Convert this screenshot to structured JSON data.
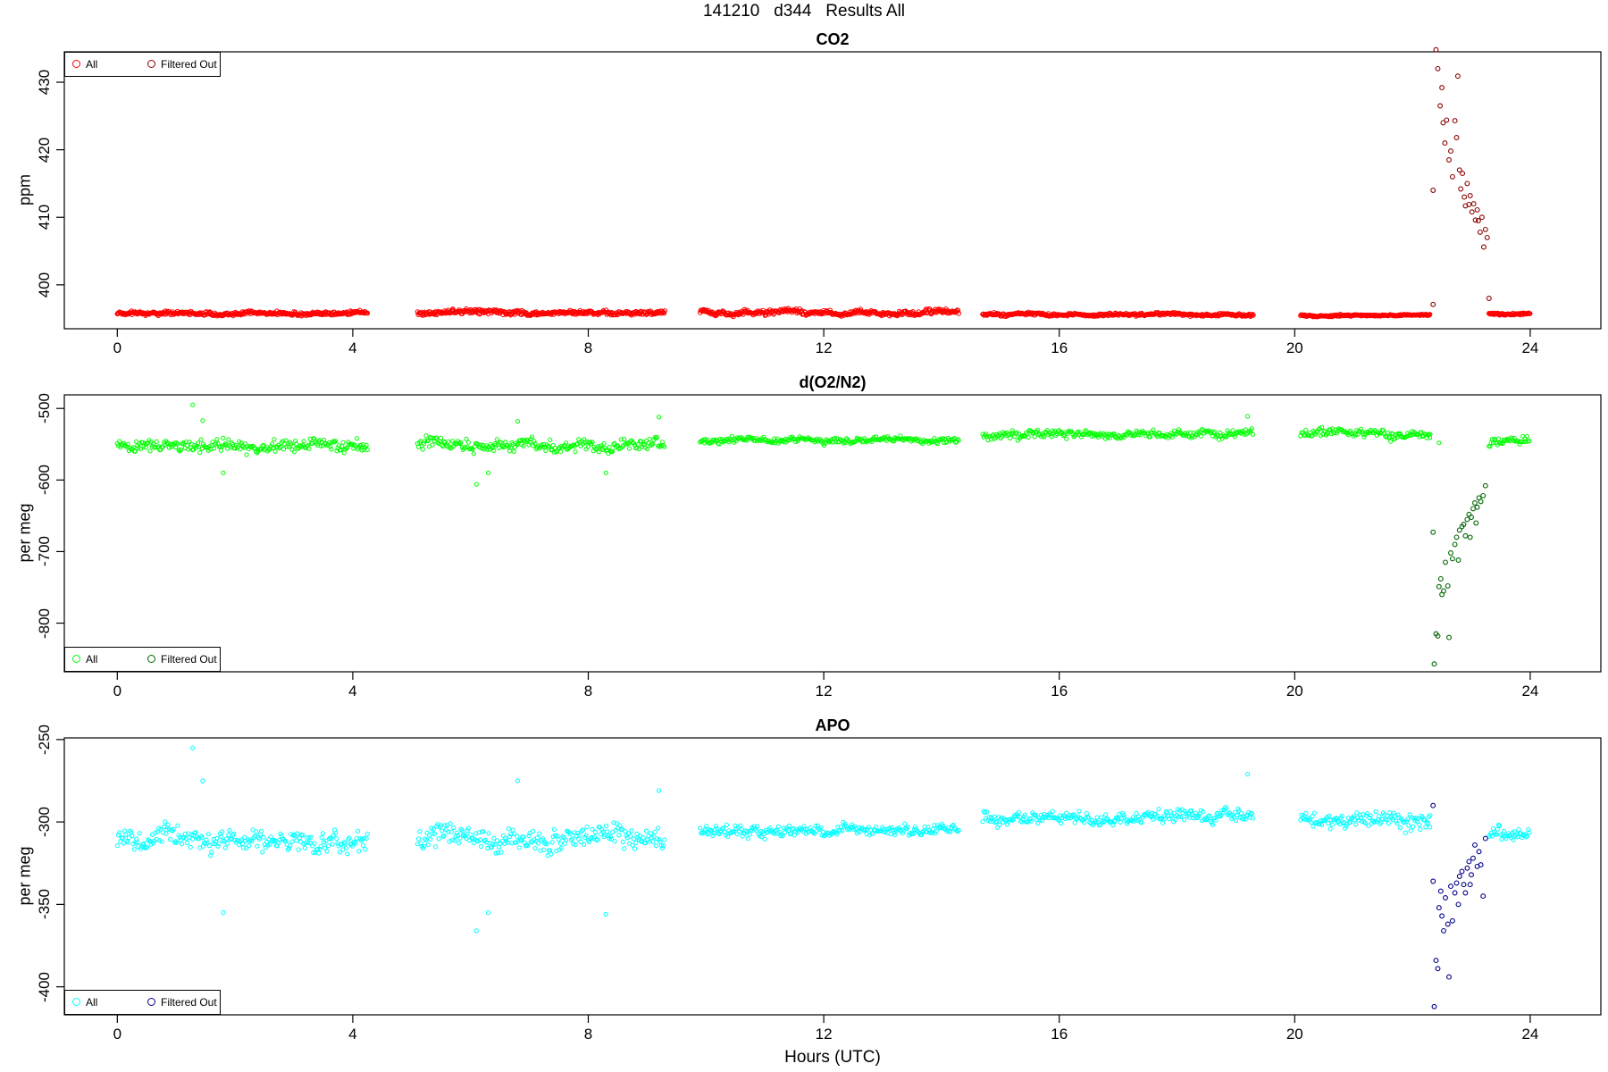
{
  "figure": {
    "title": "141210   d344   Results All",
    "xlabel": "Hours (UTC)"
  },
  "chart_data": [
    {
      "type": "scatter",
      "title": "CO2",
      "xlabel": "Hours (UTC)",
      "ylabel": "ppm",
      "xlim": [
        -0.9,
        25.2
      ],
      "ylim": [
        393.5,
        434.5
      ],
      "xticks": [
        "0",
        "4",
        "8",
        "12",
        "16",
        "20",
        "24"
      ],
      "yticks": [
        "400",
        "410",
        "420",
        "430"
      ],
      "legend": {
        "position": "top-left",
        "entries": [
          "All",
          "Filtered Out"
        ]
      },
      "colors": {
        "all": "#ff0000",
        "filtered": "#8b0000"
      },
      "series": [
        {
          "name": "All",
          "segments": [
            {
              "start": 0.0,
              "end": 4.25,
              "base": 395.8,
              "noise": 0.35
            },
            {
              "start": 5.1,
              "end": 9.3,
              "base": 395.9,
              "noise": 0.4
            },
            {
              "start": 9.9,
              "end": 14.3,
              "base": 395.9,
              "noise": 0.45
            },
            {
              "start": 14.7,
              "end": 19.3,
              "base": 395.6,
              "noise": 0.25
            },
            {
              "start": 20.1,
              "end": 22.3,
              "base": 395.5,
              "noise": 0.15
            },
            {
              "start": 23.3,
              "end": 24.0,
              "base": 395.7,
              "noise": 0.2
            }
          ]
        },
        {
          "name": "Filtered Out",
          "points": [
            [
              22.35,
              414.0
            ],
            [
              22.4,
              434.8
            ],
            [
              22.43,
              432.0
            ],
            [
              22.47,
              426.5
            ],
            [
              22.5,
              429.2
            ],
            [
              22.52,
              424.0
            ],
            [
              22.55,
              421.0
            ],
            [
              22.58,
              424.4
            ],
            [
              22.62,
              418.5
            ],
            [
              22.65,
              419.8
            ],
            [
              22.68,
              416.0
            ],
            [
              22.72,
              424.3
            ],
            [
              22.75,
              421.8
            ],
            [
              22.77,
              430.9
            ],
            [
              22.8,
              417.0
            ],
            [
              22.82,
              414.2
            ],
            [
              22.85,
              416.5
            ],
            [
              22.88,
              413.0
            ],
            [
              22.9,
              411.7
            ],
            [
              22.93,
              415.0
            ],
            [
              22.96,
              411.9
            ],
            [
              22.98,
              413.2
            ],
            [
              23.01,
              410.8
            ],
            [
              23.04,
              412.0
            ],
            [
              23.07,
              409.6
            ],
            [
              23.1,
              411.1
            ],
            [
              23.12,
              409.5
            ],
            [
              23.15,
              407.8
            ],
            [
              23.18,
              410.0
            ],
            [
              23.21,
              405.6
            ],
            [
              23.24,
              408.2
            ],
            [
              23.27,
              407.0
            ],
            [
              22.35,
              397.1
            ],
            [
              23.3,
              398.0
            ]
          ]
        }
      ]
    },
    {
      "type": "scatter",
      "title": "d(O2/N2)",
      "xlabel": "Hours (UTC)",
      "ylabel": "per meg",
      "xlim": [
        -0.9,
        25.2
      ],
      "ylim": [
        -868,
        -481
      ],
      "xticks": [
        "0",
        "4",
        "8",
        "12",
        "16",
        "20",
        "24"
      ],
      "yticks": [
        "-500",
        "-600",
        "-700",
        "-800"
      ],
      "legend": {
        "position": "bottom-left",
        "entries": [
          "All",
          "Filtered Out"
        ]
      },
      "colors": {
        "all": "#00ff00",
        "filtered": "#006400"
      },
      "series": [
        {
          "name": "All",
          "segments": [
            {
              "start": 0.0,
              "end": 4.25,
              "base": -552,
              "noise": 11
            },
            {
              "start": 5.1,
              "end": 9.3,
              "base": -551,
              "noise": 10
            },
            {
              "start": 9.9,
              "end": 14.3,
              "base": -544,
              "noise": 5
            },
            {
              "start": 14.7,
              "end": 19.3,
              "base": -536,
              "noise": 7
            },
            {
              "start": 20.1,
              "end": 22.3,
              "base": -536,
              "noise": 7
            },
            {
              "start": 23.3,
              "end": 24.0,
              "base": -548,
              "noise": 7
            }
          ],
          "outliers": [
            [
              1.28,
              -495
            ],
            [
              1.45,
              -517
            ],
            [
              1.8,
              -590
            ],
            [
              6.1,
              -606
            ],
            [
              6.3,
              -590
            ],
            [
              6.8,
              -518
            ],
            [
              8.3,
              -590
            ],
            [
              9.2,
              -512
            ],
            [
              19.2,
              -511
            ],
            [
              22.3,
              -536
            ],
            [
              22.45,
              -548
            ]
          ]
        },
        {
          "name": "Filtered Out",
          "points": [
            [
              22.35,
              -673
            ],
            [
              22.37,
              -857
            ],
            [
              22.4,
              -815
            ],
            [
              22.43,
              -818
            ],
            [
              22.45,
              -749
            ],
            [
              22.48,
              -738
            ],
            [
              22.5,
              -760
            ],
            [
              22.53,
              -755
            ],
            [
              22.56,
              -715
            ],
            [
              22.6,
              -748
            ],
            [
              22.62,
              -820
            ],
            [
              22.65,
              -702
            ],
            [
              22.68,
              -710
            ],
            [
              22.72,
              -690
            ],
            [
              22.75,
              -680
            ],
            [
              22.78,
              -712
            ],
            [
              22.8,
              -670
            ],
            [
              22.84,
              -665
            ],
            [
              22.87,
              -662
            ],
            [
              22.9,
              -678
            ],
            [
              22.93,
              -655
            ],
            [
              22.96,
              -648
            ],
            [
              23.0,
              -652
            ],
            [
              23.03,
              -640
            ],
            [
              23.06,
              -632
            ],
            [
              23.1,
              -638
            ],
            [
              23.13,
              -625
            ],
            [
              23.16,
              -630
            ],
            [
              23.2,
              -622
            ],
            [
              23.24,
              -608
            ],
            [
              22.98,
              -680
            ],
            [
              23.08,
              -660
            ]
          ]
        }
      ]
    },
    {
      "type": "scatter",
      "title": "APO",
      "xlabel": "Hours (UTC)",
      "ylabel": "per meg",
      "xlim": [
        -0.9,
        25.2
      ],
      "ylim": [
        -417,
        -249
      ],
      "xticks": [
        "0",
        "4",
        "8",
        "12",
        "16",
        "20",
        "24"
      ],
      "yticks": [
        "-250",
        "-300",
        "-350",
        "-400"
      ],
      "legend": {
        "position": "bottom-left",
        "entries": [
          "All",
          "Filtered Out"
        ]
      },
      "colors": {
        "all": "#00ffff",
        "filtered": "#00008b"
      },
      "series": [
        {
          "name": "All",
          "segments": [
            {
              "start": 0.0,
              "end": 4.25,
              "base": -311,
              "noise": 8
            },
            {
              "start": 5.1,
              "end": 9.3,
              "base": -310,
              "noise": 9
            },
            {
              "start": 9.9,
              "end": 14.3,
              "base": -305,
              "noise": 4
            },
            {
              "start": 14.7,
              "end": 19.3,
              "base": -297,
              "noise": 5
            },
            {
              "start": 20.1,
              "end": 22.3,
              "base": -298,
              "noise": 6
            },
            {
              "start": 23.3,
              "end": 24.0,
              "base": -307,
              "noise": 5
            }
          ],
          "outliers": [
            [
              1.28,
              -255
            ],
            [
              1.45,
              -275
            ],
            [
              1.8,
              -355
            ],
            [
              6.1,
              -366
            ],
            [
              6.3,
              -355
            ],
            [
              6.8,
              -275
            ],
            [
              8.3,
              -356
            ],
            [
              9.2,
              -281
            ],
            [
              19.2,
              -271
            ],
            [
              22.3,
              -296
            ]
          ]
        },
        {
          "name": "Filtered Out",
          "points": [
            [
              22.35,
              -336
            ],
            [
              22.37,
              -412
            ],
            [
              22.4,
              -384
            ],
            [
              22.43,
              -389
            ],
            [
              22.45,
              -352
            ],
            [
              22.48,
              -342
            ],
            [
              22.5,
              -357
            ],
            [
              22.53,
              -366
            ],
            [
              22.56,
              -346
            ],
            [
              22.6,
              -362
            ],
            [
              22.62,
              -394
            ],
            [
              22.65,
              -339
            ],
            [
              22.68,
              -360
            ],
            [
              22.72,
              -343
            ],
            [
              22.75,
              -337
            ],
            [
              22.78,
              -350
            ],
            [
              22.8,
              -333
            ],
            [
              22.84,
              -330
            ],
            [
              22.87,
              -338
            ],
            [
              22.9,
              -343
            ],
            [
              22.93,
              -328
            ],
            [
              22.96,
              -324
            ],
            [
              23.0,
              -332
            ],
            [
              23.03,
              -322
            ],
            [
              23.06,
              -314
            ],
            [
              23.1,
              -327
            ],
            [
              23.13,
              -318
            ],
            [
              23.16,
              -326
            ],
            [
              23.2,
              -345
            ],
            [
              23.24,
              -310
            ],
            [
              22.35,
              -290
            ],
            [
              22.98,
              -338
            ]
          ]
        }
      ]
    }
  ]
}
